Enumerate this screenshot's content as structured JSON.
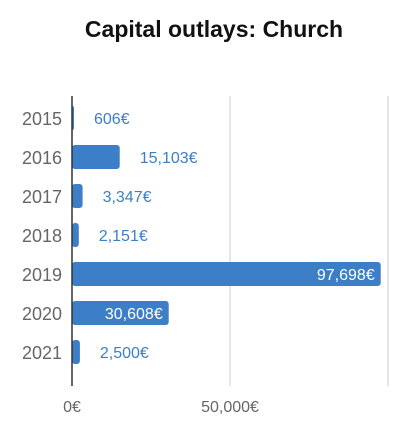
{
  "chart_data": {
    "type": "bar",
    "orientation": "horizontal",
    "title": "Capital outlays: Church",
    "categories": [
      "2015",
      "2016",
      "2017",
      "2018",
      "2019",
      "2020",
      "2021"
    ],
    "values": [
      606,
      15103,
      3347,
      2151,
      97698,
      30608,
      2500
    ],
    "value_labels": [
      "606€",
      "15,103€",
      "3,347€",
      "2,151€",
      "97,698€",
      "30,608€",
      "2,500€"
    ],
    "x_ticks": [
      0,
      50000,
      100000
    ],
    "x_tick_labels": [
      "0€",
      "50,000€",
      ""
    ],
    "xlim": [
      0,
      100000
    ],
    "grid": true,
    "legend": "none",
    "colors": {
      "bar": "#3c7fc6",
      "label_outside": "#3c7fc6",
      "label_inside": "#ffffff",
      "grid": "#cccccc",
      "axis": "#333333",
      "tick_text": "#666666",
      "title": "#111111"
    }
  }
}
